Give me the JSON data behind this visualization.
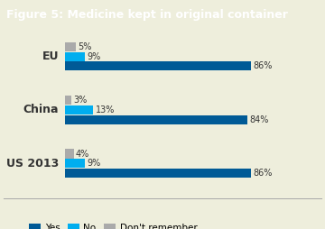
{
  "title": "Figure 5: Medicine kept in original container",
  "title_bg_color": "#8faa2b",
  "title_text_color": "#ffffff",
  "bg_color": "#eeeedc",
  "categories": [
    "EU",
    "China",
    "US 2013"
  ],
  "series_order": [
    "Don't remember",
    "No",
    "Yes"
  ],
  "series": {
    "Yes": [
      86,
      84,
      86
    ],
    "No": [
      9,
      13,
      9
    ],
    "Don't remember": [
      5,
      3,
      4
    ]
  },
  "colors": {
    "Yes": "#005a96",
    "No": "#00aeef",
    "Don't remember": "#aaaaaa"
  },
  "bar_height": 0.18,
  "xlim_max": 105,
  "legend_labels": [
    "Yes",
    "No",
    "Don't remember"
  ],
  "value_label_fontsize": 7,
  "category_fontsize": 9,
  "legend_fontsize": 7.5,
  "title_fontsize": 9
}
